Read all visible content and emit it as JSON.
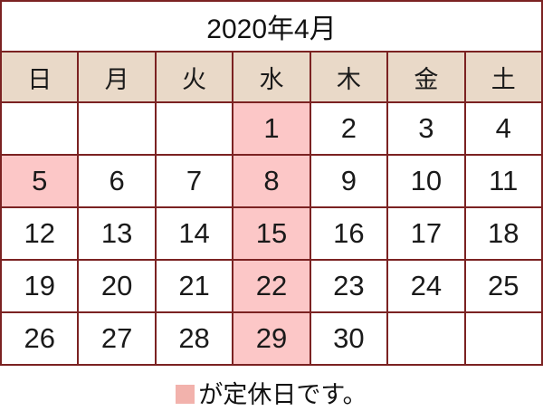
{
  "title": "2020年4月",
  "weekdays": [
    "日",
    "月",
    "火",
    "水",
    "木",
    "金",
    "土"
  ],
  "calendar": {
    "rows": [
      [
        "",
        "",
        "",
        "1",
        "2",
        "3",
        "4"
      ],
      [
        "5",
        "6",
        "7",
        "8",
        "9",
        "10",
        "11"
      ],
      [
        "12",
        "13",
        "14",
        "15",
        "16",
        "17",
        "18"
      ],
      [
        "19",
        "20",
        "21",
        "22",
        "23",
        "24",
        "25"
      ],
      [
        "26",
        "27",
        "28",
        "29",
        "30",
        "",
        ""
      ]
    ],
    "closed_days": [
      1,
      5,
      8,
      15,
      22,
      29
    ]
  },
  "legend": {
    "text": "が定休日です。"
  },
  "colors": {
    "border": "#7b2222",
    "header_bg": "#e9d9c8",
    "closed_day_bg": "#fcc7c7",
    "legend_swatch": "#f2b2ac",
    "text": "#1a1a1a"
  }
}
